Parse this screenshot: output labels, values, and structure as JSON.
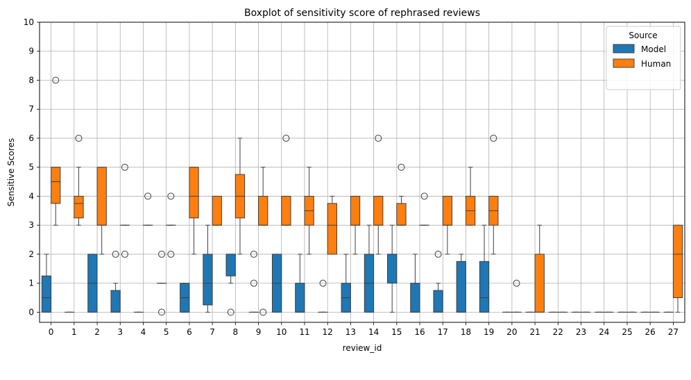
{
  "chart_data": {
    "type": "boxplot",
    "title": "Boxplot of sensitivity score of rephrased reviews",
    "xlabel": "review_id",
    "ylabel": "Sensitive Scores",
    "ylim": [
      -0.35,
      10
    ],
    "yticks": [
      0,
      1,
      2,
      3,
      4,
      5,
      6,
      7,
      8,
      9,
      10
    ],
    "categories": [
      "0",
      "1",
      "2",
      "3",
      "4",
      "5",
      "6",
      "7",
      "8",
      "9",
      "10",
      "11",
      "12",
      "13",
      "14",
      "15",
      "16",
      "17",
      "18",
      "19",
      "20",
      "21",
      "22",
      "23",
      "24",
      "25",
      "26",
      "27"
    ],
    "grid": true,
    "legend": {
      "title": "Source",
      "placement": "top-right"
    },
    "series": [
      {
        "name": "Model",
        "color": "#1f77b4",
        "boxes": [
          {
            "q1": 0,
            "med": 0.5,
            "q3": 1.25,
            "wlo": 0,
            "whi": 2,
            "out": []
          },
          {
            "q1": 0,
            "med": 0,
            "q3": 0,
            "wlo": 0,
            "whi": 0,
            "out": []
          },
          {
            "q1": 0,
            "med": 1,
            "q3": 2,
            "wlo": 0,
            "whi": 2,
            "out": []
          },
          {
            "q1": 0,
            "med": 0,
            "q3": 0.75,
            "wlo": 0,
            "whi": 1,
            "out": [
              2
            ]
          },
          {
            "q1": 0,
            "med": 0,
            "q3": 0,
            "wlo": 0,
            "whi": 0,
            "out": []
          },
          {
            "q1": 1,
            "med": 1,
            "q3": 1,
            "wlo": 1,
            "whi": 1,
            "out": [
              0,
              2
            ]
          },
          {
            "q1": 0,
            "med": 0.5,
            "q3": 1,
            "wlo": 0,
            "whi": 1,
            "out": []
          },
          {
            "q1": 0.25,
            "med": 1,
            "q3": 2,
            "wlo": 0,
            "whi": 3,
            "out": []
          },
          {
            "q1": 1.25,
            "med": 2,
            "q3": 2,
            "wlo": 1,
            "whi": 2,
            "out": [
              0
            ]
          },
          {
            "q1": 0,
            "med": 0,
            "q3": 0,
            "wlo": 0,
            "whi": 0,
            "out": [
              1,
              2
            ]
          },
          {
            "q1": 0,
            "med": 1,
            "q3": 2,
            "wlo": 0,
            "whi": 2,
            "out": []
          },
          {
            "q1": 0,
            "med": 0,
            "q3": 1,
            "wlo": 0,
            "whi": 2,
            "out": []
          },
          {
            "q1": 0,
            "med": 0,
            "q3": 0,
            "wlo": 0,
            "whi": 0,
            "out": [
              1
            ]
          },
          {
            "q1": 0,
            "med": 0.5,
            "q3": 1,
            "wlo": 0,
            "whi": 2,
            "out": []
          },
          {
            "q1": 0,
            "med": 1,
            "q3": 2,
            "wlo": 0,
            "whi": 3,
            "out": []
          },
          {
            "q1": 1,
            "med": 2,
            "q3": 2,
            "wlo": 0,
            "whi": 3,
            "out": []
          },
          {
            "q1": 0,
            "med": 0,
            "q3": 1,
            "wlo": 0,
            "whi": 2,
            "out": []
          },
          {
            "q1": 0,
            "med": 0,
            "q3": 0.75,
            "wlo": 0,
            "whi": 1,
            "out": [
              2
            ]
          },
          {
            "q1": 0,
            "med": 0,
            "q3": 1.75,
            "wlo": 0,
            "whi": 2,
            "out": []
          },
          {
            "q1": 0,
            "med": 0.5,
            "q3": 1.75,
            "wlo": 0,
            "whi": 3,
            "out": []
          },
          {
            "q1": 0,
            "med": 0,
            "q3": 0,
            "wlo": 0,
            "whi": 0,
            "out": []
          },
          {
            "q1": 0,
            "med": 0,
            "q3": 0,
            "wlo": 0,
            "whi": 0,
            "out": []
          },
          {
            "q1": 0,
            "med": 0,
            "q3": 0,
            "wlo": 0,
            "whi": 0,
            "out": []
          },
          {
            "q1": 0,
            "med": 0,
            "q3": 0,
            "wlo": 0,
            "whi": 0,
            "out": []
          },
          {
            "q1": 0,
            "med": 0,
            "q3": 0,
            "wlo": 0,
            "whi": 0,
            "out": []
          },
          {
            "q1": 0,
            "med": 0,
            "q3": 0,
            "wlo": 0,
            "whi": 0,
            "out": []
          },
          {
            "q1": 0,
            "med": 0,
            "q3": 0,
            "wlo": 0,
            "whi": 0,
            "out": []
          },
          {
            "q1": 0,
            "med": 0,
            "q3": 0,
            "wlo": 0,
            "whi": 0,
            "out": []
          }
        ]
      },
      {
        "name": "Human",
        "color": "#ff7f0e",
        "boxes": [
          {
            "q1": 3.75,
            "med": 4.5,
            "q3": 5,
            "wlo": 3,
            "whi": 5,
            "out": [
              8
            ]
          },
          {
            "q1": 3.25,
            "med": 3.75,
            "q3": 4,
            "wlo": 3,
            "whi": 5,
            "out": [
              6
            ]
          },
          {
            "q1": 3,
            "med": 3,
            "q3": 5,
            "wlo": 2,
            "whi": 5,
            "out": []
          },
          {
            "q1": 3,
            "med": 3,
            "q3": 3,
            "wlo": 3,
            "whi": 3,
            "out": [
              2,
              5
            ]
          },
          {
            "q1": 3,
            "med": 3,
            "q3": 3,
            "wlo": 3,
            "whi": 3,
            "out": [
              4
            ]
          },
          {
            "q1": 3,
            "med": 3,
            "q3": 3,
            "wlo": 3,
            "whi": 3,
            "out": [
              2,
              4
            ]
          },
          {
            "q1": 3.25,
            "med": 4,
            "q3": 5,
            "wlo": 2,
            "whi": 5,
            "out": []
          },
          {
            "q1": 3,
            "med": 3,
            "q3": 4,
            "wlo": 3,
            "whi": 4,
            "out": []
          },
          {
            "q1": 3.25,
            "med": 4,
            "q3": 4.75,
            "wlo": 2,
            "whi": 6,
            "out": []
          },
          {
            "q1": 3,
            "med": 3,
            "q3": 4,
            "wlo": 3,
            "whi": 5,
            "out": [
              0
            ]
          },
          {
            "q1": 3,
            "med": 3,
            "q3": 4,
            "wlo": 3,
            "whi": 4,
            "out": [
              6
            ]
          },
          {
            "q1": 3,
            "med": 3.5,
            "q3": 4,
            "wlo": 2,
            "whi": 5,
            "out": []
          },
          {
            "q1": 2,
            "med": 3,
            "q3": 3.75,
            "wlo": 2,
            "whi": 4,
            "out": []
          },
          {
            "q1": 3,
            "med": 3,
            "q3": 4,
            "wlo": 2,
            "whi": 4,
            "out": []
          },
          {
            "q1": 3,
            "med": 3,
            "q3": 4,
            "wlo": 2,
            "whi": 4,
            "out": [
              6
            ]
          },
          {
            "q1": 3,
            "med": 3,
            "q3": 3.75,
            "wlo": 3,
            "whi": 4,
            "out": [
              5
            ]
          },
          {
            "q1": 3,
            "med": 3,
            "q3": 3,
            "wlo": 3,
            "whi": 3,
            "out": [
              4
            ]
          },
          {
            "q1": 3,
            "med": 3,
            "q3": 4,
            "wlo": 2,
            "whi": 4,
            "out": []
          },
          {
            "q1": 3,
            "med": 3.5,
            "q3": 4,
            "wlo": 3,
            "whi": 5,
            "out": []
          },
          {
            "q1": 3,
            "med": 3.5,
            "q3": 4,
            "wlo": 2,
            "whi": 4,
            "out": [
              6
            ]
          },
          {
            "q1": 0,
            "med": 0,
            "q3": 0,
            "wlo": 0,
            "whi": 0,
            "out": [
              1
            ]
          },
          {
            "q1": 0,
            "med": 0,
            "q3": 2,
            "wlo": 0,
            "whi": 3,
            "out": []
          },
          {
            "q1": 0,
            "med": 0,
            "q3": 0,
            "wlo": 0,
            "whi": 0,
            "out": []
          },
          {
            "q1": 0,
            "med": 0,
            "q3": 0,
            "wlo": 0,
            "whi": 0,
            "out": []
          },
          {
            "q1": 0,
            "med": 0,
            "q3": 0,
            "wlo": 0,
            "whi": 0,
            "out": []
          },
          {
            "q1": 0,
            "med": 0,
            "q3": 0,
            "wlo": 0,
            "whi": 0,
            "out": []
          },
          {
            "q1": 0,
            "med": 0,
            "q3": 0,
            "wlo": 0,
            "whi": 0,
            "out": []
          },
          {
            "q1": 0.5,
            "med": 2,
            "q3": 3,
            "wlo": 0,
            "whi": 3,
            "out": []
          }
        ]
      }
    ]
  }
}
